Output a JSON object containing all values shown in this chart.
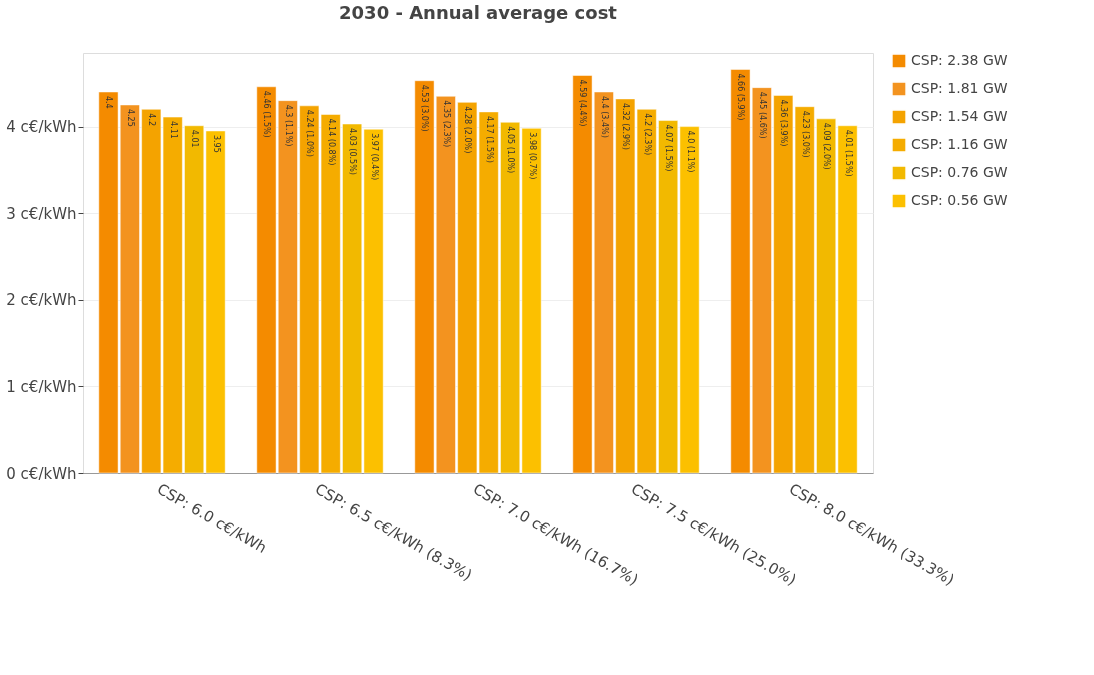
{
  "chart_data": {
    "type": "bar",
    "title": "2030 - Annual average cost",
    "categories": [
      "CSP: 6.0 c€/kWh",
      "CSP: 6.5 c€/kWh (8.3%)",
      "CSP: 7.0 c€/kWh (16.7%)",
      "CSP: 7.5 c€/kWh (25.0%)",
      "CSP: 8.0 c€/kWh (33.3%)"
    ],
    "series": [
      {
        "name": "CSP: 2.38 GW",
        "color": "#f48b00",
        "values": [
          4.4,
          4.46,
          4.53,
          4.59,
          4.66
        ],
        "value_labels": [
          "4.4",
          "4.46 (1.5%)",
          "4.53 (3.0%)",
          "4.59 (4.4%)",
          "4.66 (5.9%)"
        ]
      },
      {
        "name": "CSP: 1.81 GW",
        "color": "#f3931f",
        "values": [
          4.25,
          4.3,
          4.35,
          4.4,
          4.45
        ],
        "value_labels": [
          "4.25",
          "4.3 (1.1%)",
          "4.35 (2.3%)",
          "4.4 (3.4%)",
          "4.45 (4.6%)"
        ]
      },
      {
        "name": "CSP: 1.54 GW",
        "color": "#f4a300",
        "values": [
          4.2,
          4.24,
          4.28,
          4.32,
          4.36
        ],
        "value_labels": [
          "4.2",
          "4.24 (1.0%)",
          "4.28 (2.0%)",
          "4.32 (2.9%)",
          "4.36 (3.9%)"
        ]
      },
      {
        "name": "CSP: 1.16 GW",
        "color": "#f5ac00",
        "values": [
          4.11,
          4.14,
          4.17,
          4.2,
          4.23
        ],
        "value_labels": [
          "4.11",
          "4.14 (0.8%)",
          "4.17 (1.5%)",
          "4.2 (2.3%)",
          "4.23 (3.0%)"
        ]
      },
      {
        "name": "CSP: 0.76 GW",
        "color": "#f2b900",
        "values": [
          4.01,
          4.03,
          4.05,
          4.07,
          4.09
        ],
        "value_labels": [
          "4.01",
          "4.03 (0.5%)",
          "4.05 (1.0%)",
          "4.07 (1.5%)",
          "4.09 (2.0%)"
        ]
      },
      {
        "name": "CSP: 0.56 GW",
        "color": "#fcc000",
        "values": [
          3.95,
          3.97,
          3.98,
          4.0,
          4.01
        ],
        "value_labels": [
          "3.95",
          "3.97 (0.4%)",
          "3.98 (0.7%)",
          "4.0 (1.1%)",
          "4.01 (1.5%)"
        ]
      }
    ],
    "ylim": [
      0,
      4.85
    ],
    "yticks": [
      {
        "value": 0,
        "label": "0 c€/kWh"
      },
      {
        "value": 1,
        "label": "1 c€/kWh"
      },
      {
        "value": 2,
        "label": "2 c€/kWh"
      },
      {
        "value": 3,
        "label": "3 c€/kWh"
      },
      {
        "value": 4,
        "label": "4 c€/kWh"
      }
    ],
    "grid": "y",
    "legend": "top right"
  }
}
